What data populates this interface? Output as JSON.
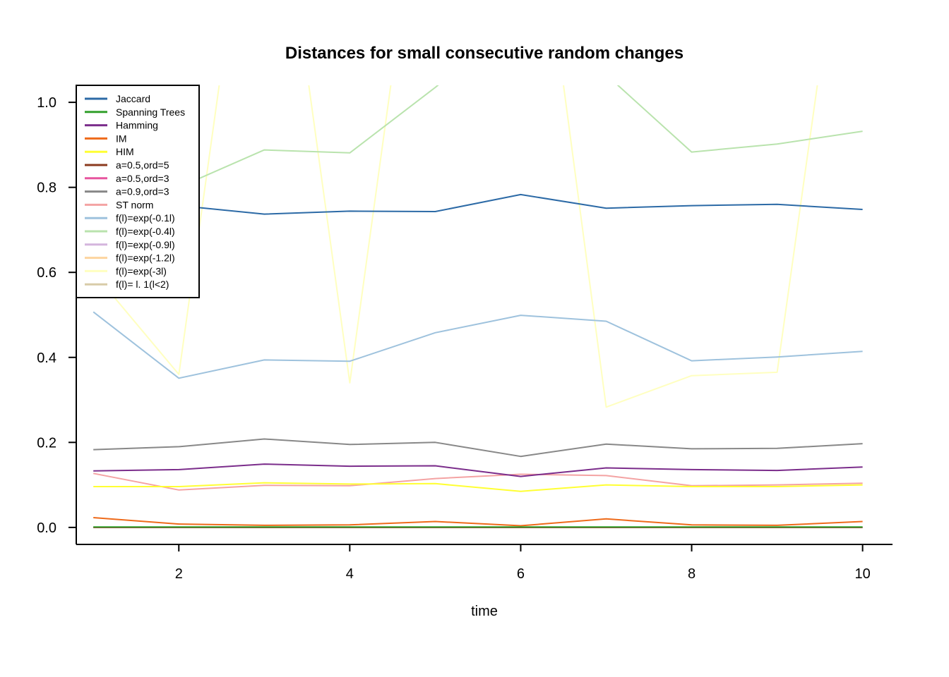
{
  "chart_data": {
    "type": "line",
    "title": "Distances for  small consecutive random changes",
    "xlabel": "time",
    "ylabel": "",
    "xlim": [
      0.8,
      10.35
    ],
    "ylim": [
      -0.04,
      1.04
    ],
    "xticks": [
      2,
      4,
      6,
      8,
      10
    ],
    "yticks": [
      0.0,
      0.2,
      0.4,
      0.6,
      0.8,
      1.0
    ],
    "xtick_labels": [
      "2",
      "4",
      "6",
      "8",
      "10"
    ],
    "ytick_labels": [
      "0.0",
      "0.2",
      "0.4",
      "0.6",
      "0.8",
      "1.0"
    ],
    "grid": false,
    "legend_position": "top-left",
    "x": [
      1,
      2,
      3,
      4,
      5,
      6,
      7,
      8,
      9,
      10
    ],
    "series": [
      {
        "name": "Jaccard",
        "color": "#2c6aa6",
        "values": [
          0.79,
          0.757,
          0.737,
          0.744,
          0.743,
          0.783,
          0.751,
          0.757,
          0.76,
          0.748
        ]
      },
      {
        "name": "Spanning Trees",
        "color": "#33a02c",
        "values": [
          0.001,
          0.001,
          0.001,
          0.001,
          0.001,
          0.001,
          0.001,
          0.001,
          0.001,
          0.001
        ]
      },
      {
        "name": "Hamming",
        "color": "#7b2d8b",
        "values": [
          0.133,
          0.136,
          0.149,
          0.144,
          0.145,
          0.12,
          0.14,
          0.136,
          0.134,
          0.142
        ]
      },
      {
        "name": "IM",
        "color": "#ee6a1a",
        "values": [
          0.023,
          0.008,
          0.005,
          0.006,
          0.014,
          0.004,
          0.02,
          0.006,
          0.005,
          0.014
        ]
      },
      {
        "name": "HIM",
        "color": "#ffff33",
        "values": [
          0.096,
          0.096,
          0.105,
          0.102,
          0.103,
          0.085,
          0.1,
          0.096,
          0.096,
          0.1
        ]
      },
      {
        "name": "a=0.5,ord=5",
        "color": "#8b3a1e",
        "values": [
          0.0,
          0.0,
          0.0,
          0.0,
          0.0,
          0.0,
          0.0,
          0.0,
          0.0,
          0.0
        ]
      },
      {
        "name": "a=0.5,ord=3",
        "color": "#e7559e",
        "values": [
          0.0,
          0.0,
          0.0,
          0.0,
          0.0,
          0.0,
          0.0,
          0.0,
          0.0,
          0.0
        ]
      },
      {
        "name": "a=0.9,ord=3",
        "color": "#888888",
        "values": [
          0.183,
          0.19,
          0.208,
          0.195,
          0.2,
          0.167,
          0.196,
          0.185,
          0.186,
          0.197
        ]
      },
      {
        "name": "ST norm",
        "color": "#f4a3a3",
        "values": [
          0.127,
          0.088,
          0.099,
          0.098,
          0.115,
          0.125,
          0.122,
          0.098,
          0.1,
          0.104
        ]
      },
      {
        "name": "f(l)=exp(-0.1l)",
        "color": "#9ec2dd",
        "values": [
          0.507,
          0.351,
          0.394,
          0.391,
          0.458,
          0.499,
          0.485,
          0.392,
          0.401,
          0.414
        ]
      },
      {
        "name": "f(l)=exp(-0.4l)",
        "color": "#b9e3ad",
        "values": [
          0.66,
          0.8,
          0.888,
          0.881,
          1.035,
          1.2,
          1.065,
          0.883,
          0.902,
          0.932
        ]
      },
      {
        "name": "f(l)=exp(-0.9l)",
        "color": "#d4b5dd",
        "values": [
          0.0,
          0.0,
          0.0,
          0.0,
          0.0,
          0.0,
          0.0,
          0.0,
          0.0,
          0.0
        ]
      },
      {
        "name": "f(l)=exp(-1.2l)",
        "color": "#fdd49e",
        "values": [
          0.0,
          0.0,
          0.0,
          0.0,
          0.0,
          0.0,
          0.0,
          0.0,
          0.0,
          0.0
        ]
      },
      {
        "name": "f(l)=exp(-3l)",
        "color": "#ffffc0",
        "values": [
          0.6,
          0.36,
          1.8,
          0.34,
          1.8,
          1.8,
          0.283,
          0.357,
          0.365,
          1.8
        ]
      },
      {
        "name": "f(l)= l. 1(l<2)",
        "color": "#d8cca8",
        "values": [
          0.0,
          0.0,
          0.0,
          0.0,
          0.0,
          0.0,
          0.0,
          0.0,
          0.0,
          0.0
        ]
      }
    ]
  }
}
